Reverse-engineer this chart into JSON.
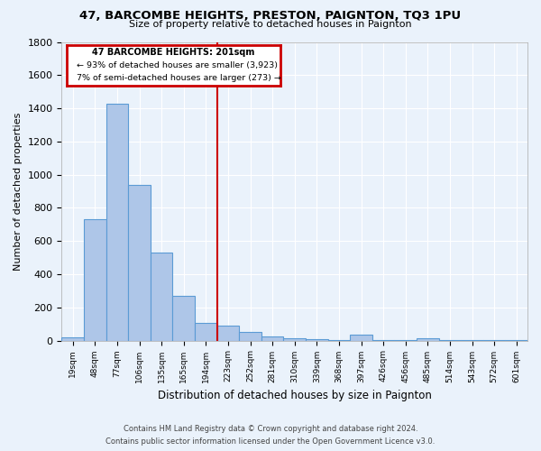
{
  "title": "47, BARCOMBE HEIGHTS, PRESTON, PAIGNTON, TQ3 1PU",
  "subtitle": "Size of property relative to detached houses in Paignton",
  "xlabel": "Distribution of detached houses by size in Paignton",
  "ylabel": "Number of detached properties",
  "footer1": "Contains HM Land Registry data © Crown copyright and database right 2024.",
  "footer2": "Contains public sector information licensed under the Open Government Licence v3.0.",
  "annotation_title": "47 BARCOMBE HEIGHTS: 201sqm",
  "annotation_line1": "← 93% of detached houses are smaller (3,923)",
  "annotation_line2": "7% of semi-detached houses are larger (273) →",
  "bar_labels": [
    "19sqm",
    "48sqm",
    "77sqm",
    "106sqm",
    "135sqm",
    "165sqm",
    "194sqm",
    "223sqm",
    "252sqm",
    "281sqm",
    "310sqm",
    "339sqm",
    "368sqm",
    "397sqm",
    "426sqm",
    "456sqm",
    "485sqm",
    "514sqm",
    "543sqm",
    "572sqm",
    "601sqm"
  ],
  "bar_values": [
    20,
    730,
    1430,
    940,
    530,
    270,
    105,
    90,
    50,
    25,
    15,
    8,
    5,
    35,
    3,
    2,
    15,
    1,
    1,
    1,
    1
  ],
  "bar_color": "#aec6e8",
  "bar_edge_color": "#5b9bd5",
  "bg_color": "#eaf2fb",
  "grid_color": "#ffffff",
  "vline_x": 7.0,
  "vline_color": "#cc0000",
  "ylim": [
    0,
    1800
  ],
  "yticks": [
    0,
    200,
    400,
    600,
    800,
    1000,
    1200,
    1400,
    1600,
    1800
  ],
  "annotation_box_color": "#cc0000",
  "annotation_bg": "#ffffff"
}
